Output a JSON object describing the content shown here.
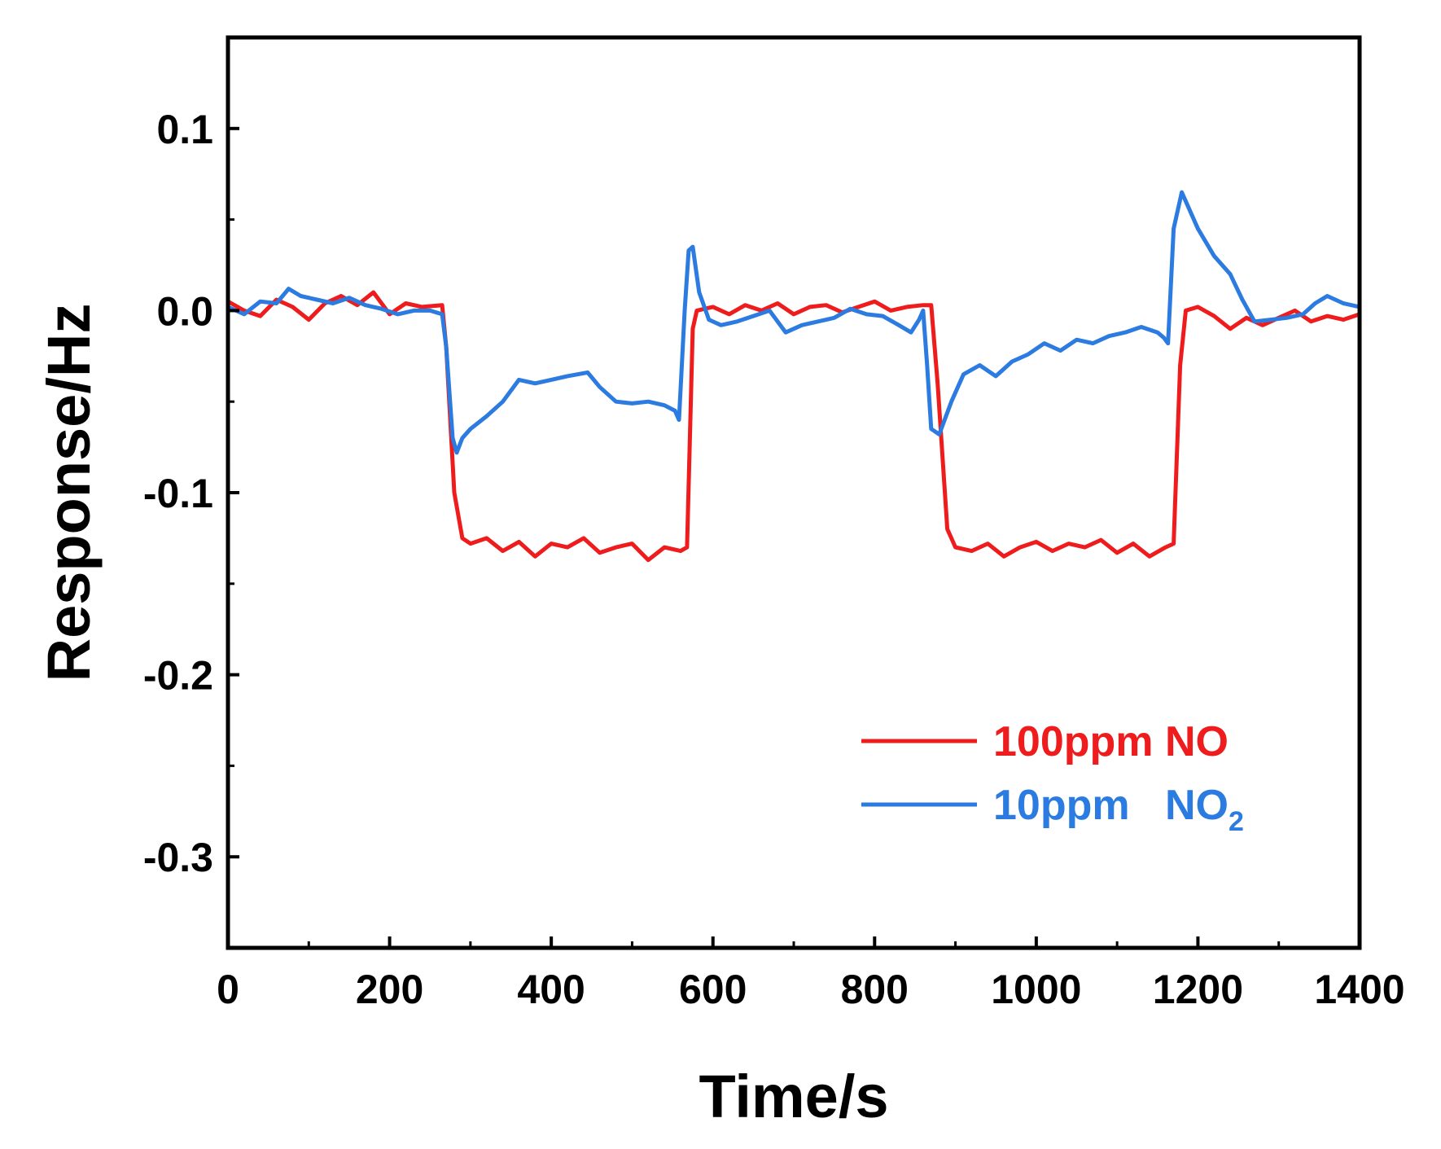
{
  "chart_data": {
    "type": "line",
    "title": "",
    "xlabel": "Time/s",
    "ylabel": "Response/Hz",
    "xlim": [
      0,
      1400
    ],
    "ylim": [
      -0.35,
      0.15
    ],
    "xticks": [
      0,
      200,
      400,
      600,
      800,
      1000,
      1200,
      1400
    ],
    "xtick_labels": [
      "0",
      "200",
      "400",
      "600",
      "800",
      "1000",
      "1200",
      "1400"
    ],
    "yticks": [
      0.1,
      0.0,
      -0.1,
      -0.2,
      -0.3
    ],
    "ytick_labels": [
      "0.1",
      "0.0",
      "-0.1",
      "-0.2",
      "-0.3"
    ],
    "grid": false,
    "legend_position": "lower-right",
    "series": [
      {
        "name": "100ppm NO",
        "label_main": "100ppm NO",
        "color": "#ee1c1c",
        "x": [
          0,
          20,
          40,
          60,
          80,
          100,
          120,
          140,
          160,
          180,
          200,
          220,
          240,
          265,
          270,
          280,
          290,
          300,
          320,
          340,
          360,
          380,
          400,
          420,
          440,
          460,
          480,
          500,
          520,
          540,
          560,
          568,
          575,
          580,
          600,
          620,
          640,
          660,
          680,
          700,
          720,
          740,
          760,
          780,
          800,
          820,
          840,
          860,
          870,
          878,
          890,
          900,
          920,
          940,
          960,
          980,
          1000,
          1020,
          1040,
          1060,
          1080,
          1100,
          1120,
          1140,
          1160,
          1170,
          1178,
          1185,
          1200,
          1220,
          1240,
          1260,
          1280,
          1300,
          1320,
          1340,
          1360,
          1380,
          1400
        ],
        "y": [
          0.005,
          0.0,
          -0.003,
          0.006,
          0.002,
          -0.005,
          0.004,
          0.008,
          0.003,
          0.01,
          -0.002,
          0.004,
          0.002,
          0.003,
          -0.02,
          -0.1,
          -0.125,
          -0.128,
          -0.125,
          -0.132,
          -0.127,
          -0.135,
          -0.128,
          -0.13,
          -0.125,
          -0.133,
          -0.13,
          -0.128,
          -0.137,
          -0.13,
          -0.132,
          -0.13,
          -0.01,
          0.0,
          0.002,
          -0.002,
          0.003,
          0.0,
          0.004,
          -0.002,
          0.002,
          0.003,
          -0.001,
          0.002,
          0.005,
          0.0,
          0.002,
          0.003,
          0.003,
          -0.04,
          -0.12,
          -0.13,
          -0.132,
          -0.128,
          -0.135,
          -0.13,
          -0.127,
          -0.132,
          -0.128,
          -0.13,
          -0.126,
          -0.133,
          -0.128,
          -0.135,
          -0.13,
          -0.128,
          -0.03,
          0.0,
          0.002,
          -0.003,
          -0.01,
          -0.004,
          -0.008,
          -0.004,
          0.0,
          -0.006,
          -0.003,
          -0.005,
          -0.002
        ]
      },
      {
        "name": "10ppm NO2",
        "label_main": "10ppm   NO",
        "label_sub": "2",
        "color": "#2b7be0",
        "x": [
          0,
          20,
          40,
          60,
          75,
          90,
          110,
          130,
          150,
          170,
          190,
          210,
          230,
          250,
          265,
          270,
          278,
          283,
          290,
          300,
          320,
          340,
          360,
          380,
          400,
          420,
          445,
          460,
          480,
          500,
          520,
          540,
          553,
          558,
          565,
          570,
          575,
          583,
          595,
          610,
          630,
          650,
          670,
          690,
          710,
          730,
          750,
          770,
          790,
          810,
          830,
          845,
          855,
          860,
          865,
          870,
          880,
          895,
          910,
          930,
          950,
          970,
          990,
          1010,
          1030,
          1050,
          1070,
          1090,
          1110,
          1130,
          1150,
          1158,
          1163,
          1170,
          1180,
          1200,
          1220,
          1240,
          1255,
          1270,
          1290,
          1310,
          1330,
          1345,
          1360,
          1380,
          1400
        ],
        "y": [
          0.002,
          -0.002,
          0.005,
          0.004,
          0.012,
          0.008,
          0.006,
          0.004,
          0.007,
          0.003,
          0.001,
          -0.002,
          0.0,
          0.0,
          -0.002,
          -0.02,
          -0.07,
          -0.078,
          -0.07,
          -0.065,
          -0.058,
          -0.05,
          -0.038,
          -0.04,
          -0.038,
          -0.036,
          -0.034,
          -0.042,
          -0.05,
          -0.051,
          -0.05,
          -0.052,
          -0.055,
          -0.06,
          0.0,
          0.033,
          0.035,
          0.01,
          -0.005,
          -0.008,
          -0.006,
          -0.003,
          0.0,
          -0.012,
          -0.008,
          -0.006,
          -0.004,
          0.001,
          -0.002,
          -0.003,
          -0.008,
          -0.012,
          -0.005,
          0.0,
          -0.03,
          -0.065,
          -0.068,
          -0.05,
          -0.035,
          -0.03,
          -0.036,
          -0.028,
          -0.024,
          -0.018,
          -0.022,
          -0.016,
          -0.018,
          -0.014,
          -0.012,
          -0.009,
          -0.012,
          -0.015,
          -0.018,
          0.045,
          0.065,
          0.045,
          0.03,
          0.02,
          0.006,
          -0.006,
          -0.005,
          -0.004,
          -0.002,
          0.004,
          0.008,
          0.004,
          0.002
        ]
      }
    ]
  }
}
